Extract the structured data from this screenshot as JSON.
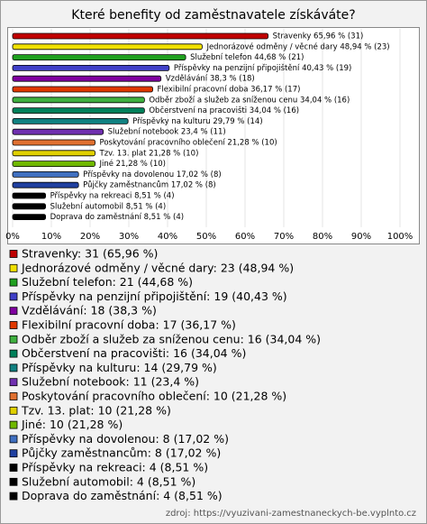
{
  "chart_data": {
    "type": "bar",
    "orientation": "horizontal",
    "title": "Které benefity od zaměstnavatele získáváte?",
    "values": [
      65.96,
      48.94,
      44.68,
      40.43,
      38.3,
      36.17,
      34.04,
      34.04,
      29.79,
      23.4,
      21.28,
      21.28,
      21.28,
      17.02,
      17.02,
      8.51,
      8.51,
      8.51
    ],
    "value_labels": [
      "Stravenky 65,96 % (31)",
      "Jednorázové odměny / věcné dary 48,94 % (23)",
      "Služební telefon 44,68 % (21)",
      "Příspěvky na penzijní připojištění 40,43 % (19)",
      "Vzdělávání 38,3 % (18)",
      "Flexibilní pracovní doba 36,17 % (17)",
      "Odběr zboží a služeb za sníženou cenu 34,04 % (16)",
      "Občerstvení na pracovišti 34,04 % (16)",
      "Příspěvky na kulturu 29,79 % (14)",
      "Služební notebook 23,4 % (11)",
      "Poskytování pracovního oblečení 21,28 % (10)",
      "Tzv. 13. plat 21,28 % (10)",
      "Jiné 21,28 % (10)",
      "Příspěvky na dovolenou 17,02 % (8)",
      "Půjčky zaměstnancům 17,02 % (8)",
      "Příspěvky na rekreaci 8,51 % (4)",
      "Služební automobil 8,51 % (4)",
      "Doprava do zaměstnání 8,51 % (4)"
    ],
    "legend_labels": [
      "Stravenky: 31 (65,96 %)",
      "Jednorázové odměny / věcné dary: 23 (48,94 %)",
      "Služební telefon: 21 (44,68 %)",
      "Příspěvky na penzijní připojištění: 19 (40,43 %)",
      "Vzdělávání: 18 (38,3 %)",
      "Flexibilní pracovní doba: 17 (36,17 %)",
      "Odběr zboží a služeb za sníženou cenu: 16 (34,04 %)",
      "Občerstvení na pracovišti: 16 (34,04 %)",
      "Příspěvky na kulturu: 14 (29,79 %)",
      "Služební notebook: 11 (23,4 %)",
      "Poskytování pracovního oblečení: 10 (21,28 %)",
      "Tzv. 13. plat: 10 (21,28 %)",
      "Jiné: 10 (21,28 %)",
      "Příspěvky na dovolenou: 8 (17,02 %)",
      "Půjčky zaměstnancům: 8 (17,02 %)",
      "Příspěvky na rekreaci: 4 (8,51 %)",
      "Služební automobil: 4 (8,51 %)",
      "Doprava do zaměstnání: 4 (8,51 %)"
    ],
    "colors": [
      "#c00000",
      "#f0e000",
      "#20a020",
      "#4040c8",
      "#8000a0",
      "#e03800",
      "#40b040",
      "#00805a",
      "#108080",
      "#7030b0",
      "#e07030",
      "#e0d000",
      "#70b800",
      "#4070c0",
      "#2040a0",
      "#000000",
      "#000000",
      "#000000"
    ],
    "xlim": [
      0,
      100
    ],
    "xticks": [
      {
        "value": 0,
        "label": "0%"
      },
      {
        "value": 10,
        "label": "10%"
      },
      {
        "value": 20,
        "label": "20%"
      },
      {
        "value": 30,
        "label": "30%"
      },
      {
        "value": 40,
        "label": "40%"
      },
      {
        "value": 50,
        "label": "50%"
      },
      {
        "value": 60,
        "label": "60%"
      },
      {
        "value": 70,
        "label": "70%"
      },
      {
        "value": 80,
        "label": "80%"
      },
      {
        "value": 90,
        "label": "90%"
      },
      {
        "value": 100,
        "label": "100%"
      }
    ],
    "grid": true,
    "source": "zdroj: https://vyuzivani-zamestnaneckych-be.vyplnto.cz"
  }
}
